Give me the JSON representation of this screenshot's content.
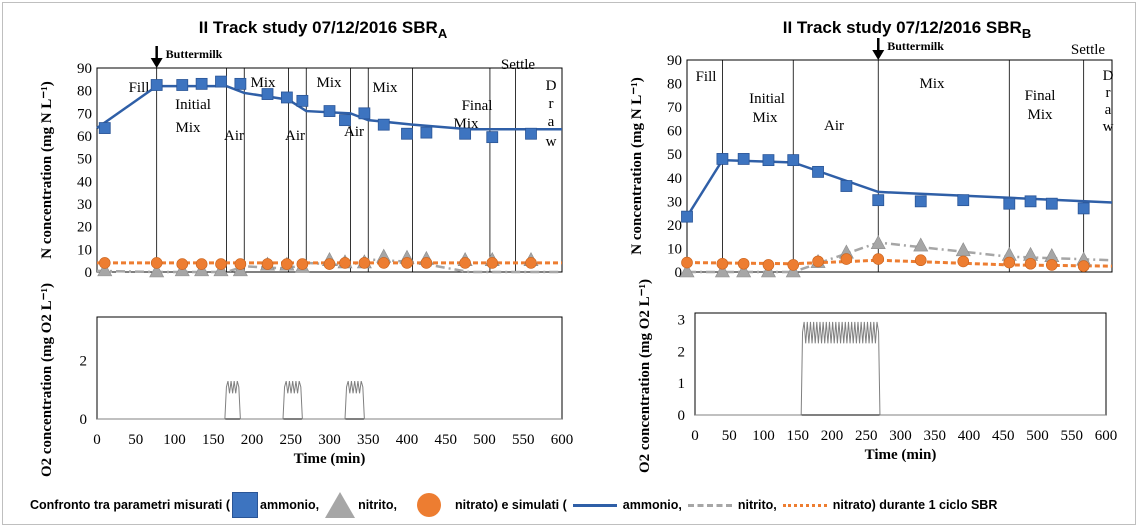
{
  "legend": {
    "prefix": "Confronto tra parametri misurati (",
    "ammonio": "ammonio,",
    "nitrito": "nitrito,",
    "nitrato_mis": "nitrato) e simulati (",
    "ammonio_sim": "ammonio,",
    "nitrito_sim": "nitrito,",
    "nitrato_sim": "nitrato) durante 1 ciclo SBR",
    "colors": {
      "ammonio": "#3d74c0",
      "nitrito": "#a6a6a6",
      "nitrato": "#ed7d31",
      "ammonio_line": "#2f5fa7"
    }
  },
  "chart_data": [
    {
      "panel": "A",
      "type": "scatter",
      "title": "II Track study 07/12/2016 SBR",
      "title_sub": "A",
      "ylabel": "N concentration (mg N L⁻¹)",
      "xlim": [
        0,
        600
      ],
      "ylim": [
        0,
        90
      ],
      "yticks": [
        0,
        10,
        20,
        30,
        40,
        50,
        60,
        70,
        80,
        90
      ],
      "phase_lines": [
        77,
        167,
        190,
        247,
        270,
        327,
        350,
        407,
        507,
        540
      ],
      "phase_labels": [
        "Fill",
        "Initial",
        "Mix",
        "Mix",
        "Air",
        "Air",
        "Mix",
        "Air",
        "Mix",
        "Final",
        "Mix",
        "Settle",
        "D",
        "r",
        "a",
        "w"
      ],
      "arrow_label": "Buttermilk",
      "arrow_x": 77,
      "series": [
        {
          "name": "ammonio",
          "kind": "measured",
          "x": [
            10,
            77,
            110,
            135,
            160,
            185,
            220,
            245,
            265,
            300,
            320,
            345,
            370,
            400,
            425,
            475,
            510,
            560
          ],
          "y": [
            63.5,
            82.5,
            82.5,
            83,
            84,
            83,
            78.5,
            77,
            75.5,
            71,
            67,
            70,
            65,
            61,
            61.5,
            61,
            59.5,
            61
          ]
        },
        {
          "name": "nitrito",
          "kind": "measured",
          "x": [
            10,
            77,
            110,
            135,
            160,
            185,
            220,
            245,
            265,
            300,
            320,
            345,
            370,
            400,
            425,
            475,
            510,
            560
          ],
          "y": [
            0.5,
            0,
            0.5,
            0.5,
            0.5,
            0.5,
            3,
            3,
            2,
            5,
            4,
            4,
            6.5,
            6,
            5.5,
            5,
            5,
            5
          ]
        },
        {
          "name": "nitrato",
          "kind": "measured",
          "x": [
            10,
            77,
            110,
            135,
            160,
            185,
            220,
            245,
            265,
            300,
            320,
            345,
            370,
            400,
            425,
            475,
            510,
            560
          ],
          "y": [
            4,
            4,
            3.5,
            3.5,
            3.5,
            3.5,
            3.5,
            3.5,
            3.5,
            3.5,
            4,
            4,
            4,
            4,
            4,
            4,
            4,
            4
          ]
        },
        {
          "name": "ammonio",
          "kind": "simulated",
          "x": [
            0,
            77,
            167,
            190,
            247,
            270,
            327,
            350,
            407,
            480,
            600
          ],
          "y": [
            63.5,
            82,
            82,
            79,
            76,
            71,
            70,
            67,
            65,
            63,
            63
          ]
        },
        {
          "name": "nitrito",
          "kind": "simulated",
          "x": [
            0,
            77,
            167,
            190,
            247,
            270,
            327,
            350,
            407,
            480,
            600
          ],
          "y": [
            0.5,
            0,
            0,
            2.5,
            1.5,
            4,
            3,
            5.5,
            4.5,
            0,
            0
          ]
        },
        {
          "name": "nitrato",
          "kind": "simulated",
          "x": [
            0,
            600
          ],
          "y": [
            4,
            4
          ]
        }
      ]
    },
    {
      "panel": "A",
      "type": "line",
      "ylabel": "O2 concentration (mg O2 L⁻¹)",
      "xlabel": "Time (min)",
      "xlim": [
        0,
        600
      ],
      "ylim": [
        0,
        3.5
      ],
      "xticks": [
        0,
        50,
        100,
        150,
        200,
        250,
        300,
        350,
        400,
        450,
        500,
        550,
        600
      ],
      "yticks_labeled": [
        0,
        2
      ],
      "aeration_windows": [
        [
          165,
          185,
          1.1
        ],
        [
          240,
          265,
          1.1
        ],
        [
          320,
          345,
          1.1
        ]
      ]
    },
    {
      "panel": "B",
      "type": "scatter",
      "title": "II Track study 07/12/2016 SBR",
      "title_sub": "B",
      "ylabel": "N concentration (mg N L⁻¹)",
      "xlim": [
        0,
        600
      ],
      "ylim": [
        0,
        90
      ],
      "yticks": [
        0,
        10,
        20,
        30,
        40,
        50,
        60,
        70,
        80,
        90
      ],
      "phase_lines": [
        50,
        150,
        270,
        455,
        560
      ],
      "phase_labels": [
        "Fill",
        "Initial",
        "Mix",
        "Air",
        "Mix",
        "Final",
        "Mix",
        "Settle",
        "D",
        "r",
        "a",
        "w"
      ],
      "arrow_label": "Buttermilk",
      "arrow_x": 270,
      "series": [
        {
          "name": "ammonio",
          "kind": "measured",
          "x": [
            0,
            50,
            80,
            115,
            150,
            185,
            225,
            270,
            330,
            390,
            455,
            485,
            515,
            560
          ],
          "y": [
            23.5,
            48,
            48,
            47.5,
            47.5,
            42.5,
            36.5,
            30.5,
            30,
            30.5,
            29,
            30,
            29,
            27
          ]
        },
        {
          "name": "nitrito",
          "kind": "measured",
          "x": [
            0,
            50,
            80,
            115,
            150,
            185,
            225,
            270,
            330,
            390,
            455,
            485,
            515,
            560
          ],
          "y": [
            0,
            0,
            0,
            0,
            0,
            4,
            8,
            12,
            11,
            9,
            7,
            7,
            6.5,
            5
          ]
        },
        {
          "name": "nitrato",
          "kind": "measured",
          "x": [
            0,
            50,
            80,
            115,
            150,
            185,
            225,
            270,
            330,
            390,
            455,
            485,
            515,
            560
          ],
          "y": [
            4,
            3.5,
            3.5,
            3,
            3,
            4.5,
            5.5,
            5.5,
            5,
            4.5,
            4,
            3.5,
            3,
            2.5
          ]
        },
        {
          "name": "ammonio",
          "kind": "simulated",
          "x": [
            0,
            50,
            150,
            270,
            455,
            600
          ],
          "y": [
            23.5,
            47.5,
            46.5,
            34,
            31.5,
            29.5
          ]
        },
        {
          "name": "nitrito",
          "kind": "simulated",
          "x": [
            0,
            50,
            150,
            270,
            455,
            600
          ],
          "y": [
            0,
            0,
            0,
            12.5,
            6.5,
            5
          ]
        },
        {
          "name": "nitrato",
          "kind": "simulated",
          "x": [
            0,
            150,
            270,
            455,
            600
          ],
          "y": [
            4,
            3.5,
            5,
            3,
            2.5
          ]
        }
      ]
    },
    {
      "panel": "B",
      "type": "line",
      "ylabel": "O2 concentration (mg O2 L⁻¹)",
      "xlabel": "Time (min)",
      "xlim": [
        0,
        600
      ],
      "ylim": [
        0,
        3.2
      ],
      "xticks": [
        0,
        50,
        100,
        150,
        200,
        250,
        300,
        350,
        400,
        450,
        500,
        550,
        600
      ],
      "yticks_labeled": [
        0,
        1,
        2,
        3
      ],
      "aeration_windows": [
        [
          155,
          270,
          2.6
        ]
      ]
    }
  ]
}
